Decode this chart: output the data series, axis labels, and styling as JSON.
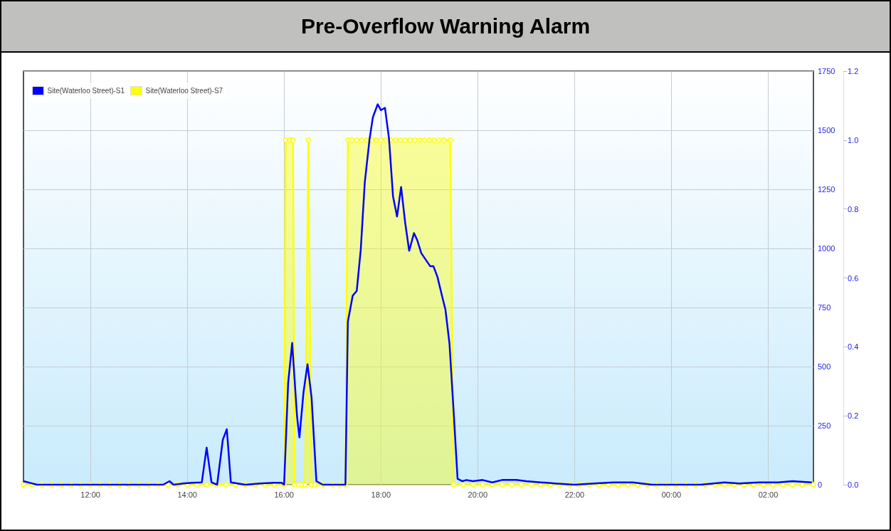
{
  "chart_data": {
    "type": "line",
    "title": "Pre-Overflow Warning Alarm",
    "xlim": [
      "--01-01T10:37",
      "--01-02T02:56"
    ],
    "xticks": [
      {
        "value": "--01-01T12:00",
        "label": "12:00"
      },
      {
        "value": "--01-01T14:00",
        "label": "14:00"
      },
      {
        "value": "--01-01T16:00",
        "label": "16:00"
      },
      {
        "value": "--01-01T18:00",
        "label": "18:00"
      },
      {
        "value": "--01-01T20:00",
        "label": "20:00"
      },
      {
        "value": "--01-01T22:00",
        "label": "22:00"
      },
      {
        "value": "--01-02T00:00",
        "label": "00:00"
      },
      {
        "value": "--01-02T02:00",
        "label": "02:00"
      }
    ],
    "ylim": [
      0,
      1750
    ],
    "yticks": [
      0,
      250,
      500,
      750,
      1000,
      1250,
      1500,
      1750
    ],
    "y2lim": [
      0,
      1.2
    ],
    "y2ticks": [
      {
        "value": 0,
        "label": "0.0"
      },
      {
        "value": 0.2,
        "label": "0.2"
      },
      {
        "value": 0.4,
        "label": "0.4"
      },
      {
        "value": 0.6,
        "label": "0.6"
      },
      {
        "value": 0.8,
        "label": "0.8"
      },
      {
        "value": 1,
        "label": "1.0"
      },
      {
        "value": 1.2,
        "label": "1.2"
      }
    ],
    "grid": true,
    "legend": "top left",
    "series": [
      {
        "name": "Site(Waterloo Street)-S1",
        "type": "line",
        "marker": "none",
        "color": "#0000ff",
        "x": [
          "--01-01T10:37",
          "--01-01T10:45",
          "--01-01T10:54",
          "--01-01T11:30",
          "--01-01T12:00",
          "--01-01T12:30",
          "--01-01T13:00",
          "--01-01T13:30",
          "--01-01T13:38",
          "--01-01T13:43",
          "--01-01T13:54",
          "--01-01T14:06",
          "--01-01T14:18",
          "--01-01T14:24",
          "--01-01T14:30",
          "--01-01T14:37",
          "--01-01T14:44",
          "--01-01T14:49",
          "--01-01T14:54",
          "--01-01T15:12",
          "--01-01T15:30",
          "--01-01T15:48",
          "--01-01T15:57",
          "--01-01T16:00",
          "--01-01T16:05",
          "--01-01T16:10",
          "--01-01T16:16",
          "--01-01T16:19",
          "--01-01T16:24",
          "--01-01T16:29",
          "--01-01T16:34",
          "--01-01T16:40",
          "--01-01T16:48",
          "--01-01T17:00",
          "--01-01T17:16",
          "--01-01T17:19",
          "--01-01T17:25",
          "--01-01T17:30",
          "--01-01T17:35",
          "--01-01T17:40",
          "--01-01T17:46",
          "--01-01T17:50",
          "--01-01T17:56",
          "--01-01T18:00",
          "--01-01T18:05",
          "--01-01T18:10",
          "--01-01T18:15",
          "--01-01T18:20",
          "--01-01T18:25",
          "--01-01T18:30",
          "--01-01T18:35",
          "--01-01T18:41",
          "--01-01T18:45",
          "--01-01T18:50",
          "--01-01T18:56",
          "--01-01T19:01",
          "--01-01T19:05",
          "--01-01T19:10",
          "--01-01T19:16",
          "--01-01T19:20",
          "--01-01T19:25",
          "--01-01T19:30",
          "--01-01T19:35",
          "--01-01T19:41",
          "--01-01T19:46",
          "--01-01T19:54",
          "--01-01T20:06",
          "--01-01T20:18",
          "--01-01T20:30",
          "--01-01T20:48",
          "--01-01T21:00",
          "--01-01T21:18",
          "--01-01T21:36",
          "--01-01T22:00",
          "--01-01T22:24",
          "--01-01T22:48",
          "--01-01T23:12",
          "--01-01T23:36",
          "--01-02T00:00",
          "--01-02T00:36",
          "--01-02T01:06",
          "--01-02T01:24",
          "--01-02T01:48",
          "--01-02T02:12",
          "--01-02T02:30",
          "--01-02T02:54"
        ],
        "values": [
          15,
          8,
          0,
          0,
          0,
          0,
          0,
          0,
          15,
          0,
          5,
          8,
          10,
          157,
          10,
          0,
          190,
          235,
          10,
          0,
          5,
          8,
          8,
          0,
          430,
          600,
          290,
          200,
          390,
          510,
          370,
          15,
          0,
          0,
          0,
          690,
          800,
          820,
          995,
          1280,
          1465,
          1555,
          1610,
          1585,
          1595,
          1465,
          1220,
          1135,
          1260,
          1110,
          990,
          1065,
          1035,
          980,
          950,
          925,
          925,
          880,
          795,
          740,
          595,
          315,
          25,
          15,
          20,
          15,
          20,
          10,
          20,
          20,
          15,
          10,
          5,
          0,
          5,
          10,
          10,
          0,
          0,
          0,
          10,
          5,
          10,
          10,
          15,
          10
        ]
      },
      {
        "name": "Site(Waterloo Street)-S7",
        "type": "area",
        "axis": "y2",
        "marker": "circle",
        "color": "#ffff00",
        "x": [
          "--01-01T10:37",
          "--01-01T10:48",
          "--01-01T11:00",
          "--01-01T11:12",
          "--01-01T11:24",
          "--01-01T11:36",
          "--01-01T11:48",
          "--01-01T12:00",
          "--01-01T12:12",
          "--01-01T12:24",
          "--01-01T12:36",
          "--01-01T12:48",
          "--01-01T13:00",
          "--01-01T13:12",
          "--01-01T13:24",
          "--01-01T13:36",
          "--01-01T13:48",
          "--01-01T14:00",
          "--01-01T14:12",
          "--01-01T14:24",
          "--01-01T14:36",
          "--01-01T14:48",
          "--01-01T15:00",
          "--01-01T15:12",
          "--01-01T15:24",
          "--01-01T15:36",
          "--01-01T15:48",
          "--01-01T16:00",
          "--01-01T16:02",
          "--01-01T16:07",
          "--01-01T16:11",
          "--01-01T16:13",
          "--01-01T16:18",
          "--01-01T16:22",
          "--01-01T16:26",
          "--01-01T16:30",
          "--01-01T16:34",
          "--01-01T16:38",
          "--01-01T16:48",
          "--01-01T17:00",
          "--01-01T17:09",
          "--01-01T17:16",
          "--01-01T17:19",
          "--01-01T17:24",
          "--01-01T17:30",
          "--01-01T17:36",
          "--01-01T17:42",
          "--01-01T17:48",
          "--01-01T17:54",
          "--01-01T18:00",
          "--01-01T18:06",
          "--01-01T18:12",
          "--01-01T18:18",
          "--01-01T18:24",
          "--01-01T18:30",
          "--01-01T18:36",
          "--01-01T18:42",
          "--01-01T18:48",
          "--01-01T18:54",
          "--01-01T19:00",
          "--01-01T19:06",
          "--01-01T19:12",
          "--01-01T19:18",
          "--01-01T19:26",
          "--01-01T19:30",
          "--01-01T19:42",
          "--01-01T19:54",
          "--01-01T20:06",
          "--01-01T20:18",
          "--01-01T20:30",
          "--01-01T20:42",
          "--01-01T20:54",
          "--01-01T21:06",
          "--01-01T21:18",
          "--01-01T21:30",
          "--01-01T21:42",
          "--01-01T21:54",
          "--01-01T22:06",
          "--01-01T22:18",
          "--01-01T22:30",
          "--01-01T22:42",
          "--01-01T22:54",
          "--01-01T23:06",
          "--01-01T23:18",
          "--01-01T23:30",
          "--01-01T23:42",
          "--01-01T23:54",
          "--01-02T00:06",
          "--01-02T00:18",
          "--01-02T00:30",
          "--01-02T00:42",
          "--01-02T00:54",
          "--01-02T01:06",
          "--01-02T01:18",
          "--01-02T01:30",
          "--01-02T01:42",
          "--01-02T01:54",
          "--01-02T02:06",
          "--01-02T02:18",
          "--01-02T02:30",
          "--01-02T02:42",
          "--01-02T02:56"
        ],
        "values": [
          0,
          0,
          0,
          0,
          0,
          0,
          0,
          0,
          0,
          0,
          0,
          0,
          0,
          0,
          0,
          0,
          0,
          0,
          0,
          0,
          0,
          0,
          0,
          0,
          0,
          0,
          0,
          0,
          1,
          1,
          1,
          0,
          0,
          0,
          0,
          1,
          0,
          0,
          0,
          0,
          0,
          0,
          1,
          1,
          1,
          1,
          1,
          1,
          1,
          1,
          1,
          1,
          1,
          1,
          1,
          1,
          1,
          1,
          1,
          1,
          1,
          1,
          1,
          1,
          0,
          0,
          0,
          0,
          0,
          0,
          0,
          0,
          0,
          0,
          0,
          0,
          0,
          0,
          0,
          0,
          0,
          0,
          0,
          0,
          0,
          0,
          0,
          0,
          0,
          0,
          0,
          0,
          0,
          0,
          0,
          0,
          0,
          0,
          0,
          0,
          0,
          0
        ]
      }
    ]
  }
}
